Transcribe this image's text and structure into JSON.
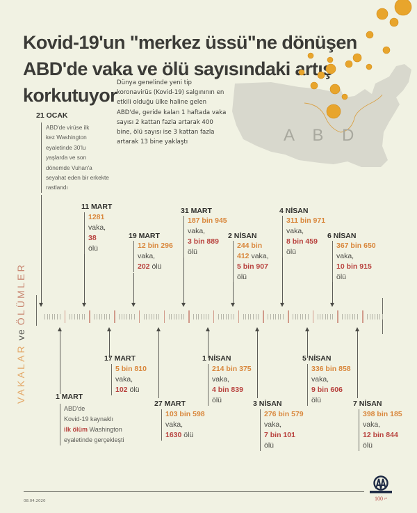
{
  "title": {
    "line1": "Kovid-19'un \"merkez üssü\"ne dönüşen",
    "line2": "ABD'de vaka ve ölü sayısındaki artış",
    "line3": "korkutuyor"
  },
  "intro": {
    "lines": [
      "Dünya genelinde yeni tip",
      "koronavirüs (Kovid-19) salgınının en",
      "etkili olduğu ülke haline gelen",
      "ABD'de, geride kalan 1 haftada vaka",
      "sayısı 2 kattan fazla artarak 400",
      "bine, ölü sayısı ise 3 kattan fazla",
      "artarak 13 bine yaklaştı"
    ]
  },
  "map": {
    "label": "A B D",
    "icon": "usa-map-with-virus-icons"
  },
  "side_label": {
    "cases": "VAKALAR",
    "and": "ve",
    "deaths": "ÖLÜMLER"
  },
  "colors": {
    "background": "#f1f2e3",
    "cases": "#d9873c",
    "deaths": "#b8423e",
    "text": "#3b3b37"
  },
  "events_top": [
    {
      "date": "21 OCAK",
      "text": [
        "ABD'de virüse ilk",
        "kez Washington",
        "eyaletinde 30'lu",
        "yaşlarda ve son",
        "dönemde Vuhan'a",
        "seyahat eden bir erkekte",
        "rastlandı"
      ]
    },
    {
      "date": "11 MART",
      "cases": "1281",
      "cases_suffix": "vaka,",
      "deaths": "38",
      "deaths_suffix": "ölü"
    },
    {
      "date": "19 MART",
      "cases": "12 bin 296",
      "cases_suffix": "vaka,",
      "deaths": "202",
      "deaths_suffix": "ölü"
    },
    {
      "date": "31 MART",
      "cases": "187 bin 945",
      "cases_suffix": "vaka,",
      "deaths": "3 bin 889",
      "deaths_suffix": "ölü"
    },
    {
      "date": "2 NİSAN",
      "cases_a": "244 bin",
      "cases_b": "412",
      "cases_suffix": "vaka,",
      "deaths": "5 bin 907",
      "deaths_suffix": "ölü"
    },
    {
      "date": "4 NİSAN",
      "cases": "311 bin 971",
      "cases_suffix": "vaka,",
      "deaths": "8 bin 459",
      "deaths_suffix": "ölü"
    },
    {
      "date": "6 NİSAN",
      "cases": "367 bin 650",
      "cases_suffix": "vaka,",
      "deaths": "10 bin 915",
      "deaths_suffix": "ölü"
    }
  ],
  "events_bottom": [
    {
      "date": "1 MART",
      "text1": "ABD'de",
      "text2": "Kovid-19 kaynaklı",
      "highlight": "ilk ölüm",
      "text3": "Washington",
      "text4": "eyaletinde gerçekleşti"
    },
    {
      "date": "17 MART",
      "cases": "5 bin 810",
      "cases_suffix": "vaka,",
      "deaths": "102",
      "deaths_suffix": "ölü"
    },
    {
      "date": "27 MART",
      "cases": "103 bin 598",
      "cases_suffix": "vaka,",
      "deaths": "1630",
      "deaths_suffix": "ölü"
    },
    {
      "date": "1 NİSAN",
      "cases": "214 bin 375",
      "cases_suffix": "vaka,",
      "deaths": "4 bin 839",
      "deaths_suffix": "ölü"
    },
    {
      "date": "3 NİSAN",
      "cases": "276 bin 579",
      "cases_suffix": "vaka,",
      "deaths": "7 bin 101",
      "deaths_suffix": "ölü"
    },
    {
      "date": "5 NİSAN",
      "cases": "336 bin 858",
      "cases_suffix": "vaka,",
      "deaths": "9 bin 606",
      "deaths_suffix": "ölü"
    },
    {
      "date": "7 NİSAN",
      "cases": "398 bin 185",
      "cases_suffix": "vaka,",
      "deaths": "12 bin 844",
      "deaths_suffix": "ölü"
    }
  ],
  "footer": {
    "date": "08.04.2020",
    "logo_name": "ANADOLU AJANSI",
    "logo_sub": "100 yıl"
  }
}
